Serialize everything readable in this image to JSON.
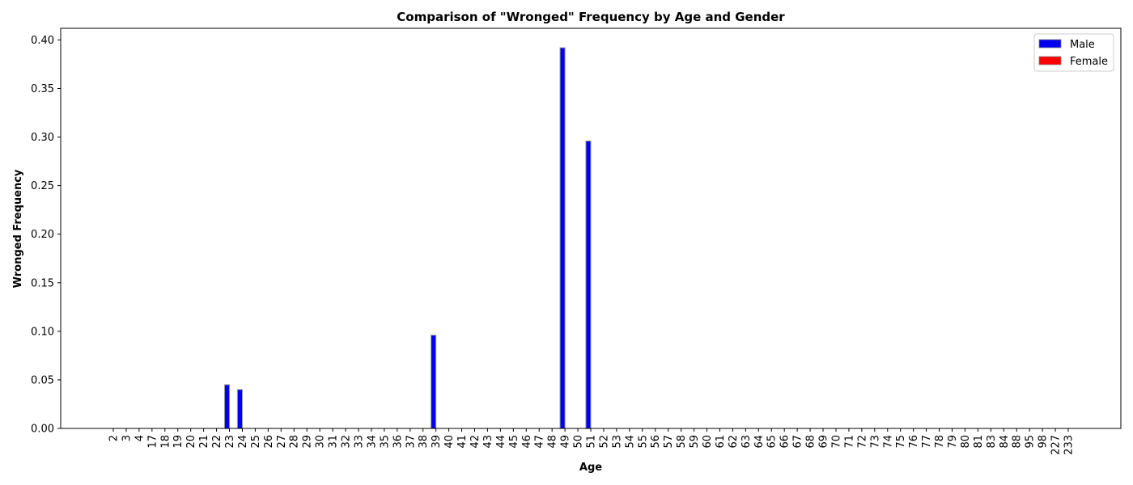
{
  "chart_data": {
    "type": "bar",
    "title": "Comparison of \"Wronged\" Frequency by Age and Gender",
    "xlabel": "Age",
    "ylabel": "Wronged Frequency",
    "ylim": [
      0,
      0.412
    ],
    "yticks": [
      "0.00",
      "0.05",
      "0.10",
      "0.15",
      "0.20",
      "0.25",
      "0.30",
      "0.35",
      "0.40"
    ],
    "grid": false,
    "legend_position": "top-right",
    "categories": [
      "2",
      "3",
      "4",
      "17",
      "18",
      "19",
      "20",
      "21",
      "22",
      "23",
      "24",
      "25",
      "26",
      "27",
      "28",
      "29",
      "30",
      "31",
      "32",
      "33",
      "34",
      "35",
      "36",
      "37",
      "38",
      "39",
      "40",
      "41",
      "42",
      "43",
      "44",
      "45",
      "46",
      "47",
      "48",
      "49",
      "50",
      "51",
      "52",
      "53",
      "54",
      "55",
      "56",
      "57",
      "58",
      "59",
      "60",
      "61",
      "62",
      "63",
      "64",
      "65",
      "66",
      "67",
      "68",
      "69",
      "70",
      "71",
      "72",
      "73",
      "74",
      "75",
      "76",
      "77",
      "78",
      "79",
      "80",
      "81",
      "83",
      "84",
      "88",
      "95",
      "98",
      "227",
      "233"
    ],
    "series": [
      {
        "name": "Male",
        "color": "#0000ee",
        "values": [
          0,
          0,
          0,
          0,
          0,
          0,
          0,
          0,
          0,
          0.045,
          0.04,
          0,
          0,
          0,
          0,
          0,
          0,
          0,
          0,
          0,
          0,
          0,
          0,
          0,
          0,
          0.096,
          0,
          0,
          0,
          0,
          0,
          0,
          0,
          0,
          0,
          0.392,
          0,
          0.296,
          0,
          0,
          0,
          0,
          0,
          0,
          0,
          0,
          0,
          0,
          0,
          0,
          0,
          0,
          0,
          0,
          0,
          0,
          0,
          0,
          0,
          0,
          0,
          0,
          0,
          0,
          0,
          0,
          0,
          0,
          0,
          0,
          0,
          0,
          0,
          0,
          0
        ]
      },
      {
        "name": "Female",
        "color": "#ff0000",
        "values": [
          0,
          0,
          0,
          0,
          0,
          0,
          0,
          0,
          0,
          0,
          0,
          0,
          0,
          0,
          0,
          0,
          0,
          0,
          0,
          0,
          0,
          0,
          0,
          0,
          0,
          0,
          0,
          0,
          0,
          0,
          0,
          0,
          0,
          0,
          0,
          0,
          0,
          0,
          0,
          0,
          0,
          0,
          0,
          0,
          0,
          0,
          0,
          0,
          0,
          0,
          0,
          0,
          0,
          0,
          0,
          0,
          0,
          0,
          0,
          0,
          0,
          0,
          0,
          0,
          0,
          0,
          0,
          0,
          0,
          0,
          0,
          0,
          0,
          0,
          0
        ]
      }
    ]
  }
}
